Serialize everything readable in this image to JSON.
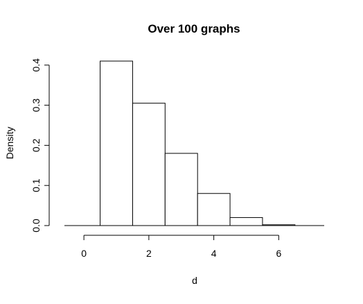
{
  "chart_data": {
    "type": "bar",
    "subtype": "histogram",
    "title": "Over 100 graphs",
    "xlabel": "d",
    "ylabel": "Density",
    "bins": [
      {
        "start": 0.5,
        "end": 1.5,
        "value": 0.41
      },
      {
        "start": 1.5,
        "end": 2.5,
        "value": 0.305
      },
      {
        "start": 2.5,
        "end": 3.5,
        "value": 0.18
      },
      {
        "start": 3.5,
        "end": 4.5,
        "value": 0.08
      },
      {
        "start": 4.5,
        "end": 5.5,
        "value": 0.02
      },
      {
        "start": 5.5,
        "end": 6.5,
        "value": 0.002
      }
    ],
    "xlim": [
      -0.6,
      7.4
    ],
    "ylim": [
      0,
      0.41
    ],
    "xticks": [
      0,
      2,
      4,
      6
    ],
    "xtick_labels": [
      "0",
      "2",
      "4",
      "6"
    ],
    "yticks": [
      0.0,
      0.1,
      0.2,
      0.3,
      0.4
    ],
    "ytick_labels": [
      "0.0",
      "0.1",
      "0.2",
      "0.3",
      "0.4"
    ],
    "grid": false,
    "legend": "none",
    "colors": {
      "bar_fill": "#ffffff",
      "bar_stroke": "#000000"
    }
  }
}
